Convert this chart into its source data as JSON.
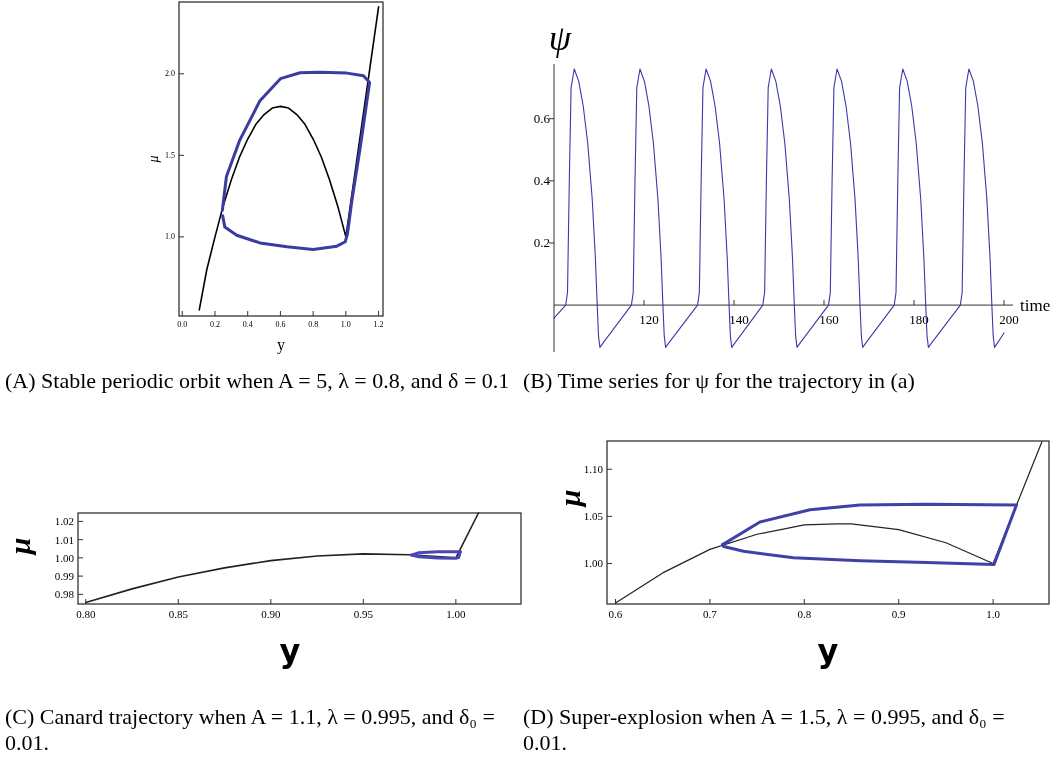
{
  "chart_data": [
    {
      "type": "line",
      "xlabel": "y",
      "ylabel": "μ",
      "xlim": [
        -0.02,
        1.227
      ],
      "ylim": [
        0.515,
        2.44
      ],
      "xticks": [
        {
          "value": 0,
          "label": "0.0"
        },
        0.2,
        0.4,
        0.6,
        0.8,
        {
          "value": 1,
          "label": "1.0"
        },
        1.2
      ],
      "yticks": [
        {
          "value": 1,
          "label": "1.0"
        },
        1.5,
        {
          "value": 2,
          "label": "2.0"
        }
      ],
      "series": [
        {
          "color": "#000000",
          "x": [
            0.104,
            0.15,
            0.2,
            0.25,
            0.3,
            0.35,
            0.4,
            0.45,
            0.5,
            0.55,
            0.6,
            0.65,
            0.7,
            0.75,
            0.8,
            0.85,
            0.9,
            0.95,
            1.0,
            1.2
          ],
          "values": [
            0.552,
            0.8,
            1.0,
            1.19,
            1.35,
            1.49,
            1.6,
            1.69,
            1.75,
            1.79,
            1.8,
            1.79,
            1.75,
            1.69,
            1.6,
            1.49,
            1.35,
            1.19,
            1.0,
            2.41
          ]
        },
        {
          "color": "#3b3ba0",
          "x": [
            0.245,
            0.27,
            0.35,
            0.475,
            0.6,
            0.72,
            0.84,
            1.006,
            1.108,
            1.145,
            1.088,
            1.037,
            1.01,
            0.996,
            0.945,
            0.8,
            0.64,
            0.475,
            0.333,
            0.26,
            0.247
          ],
          "values": [
            1.163,
            1.37,
            1.59,
            1.835,
            1.97,
            2.006,
            2.01,
            2.004,
            1.988,
            1.947,
            1.55,
            1.224,
            1.02,
            0.97,
            0.943,
            0.923,
            0.939,
            0.963,
            1.01,
            1.06,
            1.13
          ]
        }
      ],
      "annotations": [
        "(A) Stable periodic orbit when A = 5, λ = 0.8, and δ = 0.1"
      ]
    },
    {
      "type": "line",
      "xlabel": "time",
      "ylabel": "ψ",
      "xlim": [
        100,
        202
      ],
      "ylim": [
        -0.151,
        0.776
      ],
      "xticks": [
        120,
        140,
        160,
        180,
        200
      ],
      "yticks": [
        0.2,
        0.4,
        0.6
      ],
      "series": [
        {
          "color": "#3a3aa8",
          "x": [
            100,
            102.6,
            103,
            103.4,
            103.8,
            104.5,
            105.5,
            106.5,
            107.5,
            108.5,
            109.2,
            109.6,
            109.9,
            110.2,
            111,
            117.2,
            117.6,
            118,
            118.4,
            119.1,
            120.1,
            121.1,
            122.1,
            123.1,
            123.8,
            124.2,
            124.5,
            124.8,
            125.6,
            131.9,
            132.3,
            132.7,
            133.1,
            133.8,
            134.8,
            135.8,
            136.8,
            137.8,
            138.5,
            138.9,
            139.2,
            139.5,
            140.3,
            146.4,
            146.8,
            147.2,
            147.6,
            148.3,
            149.3,
            150.3,
            151.3,
            152.3,
            153,
            153.4,
            153.7,
            154,
            154.8,
            161,
            161.4,
            161.8,
            162.2,
            162.9,
            163.9,
            164.9,
            165.9,
            166.9,
            167.6,
            168,
            168.3,
            168.6,
            169.4,
            175.6,
            176,
            176.4,
            176.8,
            177.5,
            178.5,
            179.5,
            180.5,
            181.5,
            182.2,
            182.6,
            182.9,
            183.2,
            184,
            190.3,
            190.7,
            191.1,
            191.5,
            192.2,
            193.2,
            194.2,
            195.2,
            196.2,
            196.9,
            197.3,
            197.6,
            197.9,
            200
          ],
          "values": [
            -0.042,
            0,
            0.04,
            0.4,
            0.7,
            0.76,
            0.72,
            0.64,
            0.52,
            0.34,
            0.15,
            0,
            -0.1,
            -0.136,
            -0.12,
            0,
            0.04,
            0.4,
            0.7,
            0.76,
            0.72,
            0.64,
            0.52,
            0.34,
            0.15,
            0,
            -0.1,
            -0.136,
            -0.12,
            0,
            0.04,
            0.4,
            0.7,
            0.76,
            0.72,
            0.64,
            0.52,
            0.34,
            0.15,
            0,
            -0.1,
            -0.136,
            -0.12,
            0,
            0.04,
            0.4,
            0.7,
            0.76,
            0.72,
            0.64,
            0.52,
            0.34,
            0.15,
            0,
            -0.1,
            -0.136,
            -0.12,
            0,
            0.04,
            0.4,
            0.7,
            0.76,
            0.72,
            0.64,
            0.52,
            0.34,
            0.15,
            0,
            -0.1,
            -0.136,
            -0.12,
            0,
            0.04,
            0.4,
            0.7,
            0.76,
            0.72,
            0.64,
            0.52,
            0.34,
            0.15,
            0,
            -0.1,
            -0.136,
            -0.12,
            0,
            0.04,
            0.4,
            0.7,
            0.76,
            0.72,
            0.64,
            0.52,
            0.34,
            0.15,
            0,
            -0.1,
            -0.136,
            -0.09
          ]
        }
      ],
      "annotations": [
        "(B) Time series for ψ for the trajectory in (a)"
      ]
    },
    {
      "type": "line",
      "xlabel": "y",
      "ylabel": "μ",
      "xlim": [
        0.7958,
        1.0352
      ],
      "ylim": [
        0.9747,
        1.0246
      ],
      "xticks": [
        {
          "value": 0.8,
          "label": "0.80"
        },
        0.85,
        {
          "value": 0.9,
          "label": "0.90"
        },
        0.95,
        {
          "value": 1,
          "label": "1.00"
        }
      ],
      "yticks": [
        0.98,
        0.99,
        {
          "value": 1,
          "label": "1.00"
        },
        1.01,
        1.02
      ],
      "series": [
        {
          "color": "#222222",
          "x": [
            0.8,
            0.825,
            0.85,
            0.875,
            0.9,
            0.925,
            0.95,
            0.975,
            1.0,
            1.0122
          ],
          "values": [
            0.9755,
            0.983,
            0.9895,
            0.9945,
            0.9985,
            1.001,
            1.0022,
            1.0017,
            1.0,
            1.0246
          ]
        },
        {
          "color": "#4848b0",
          "x": [
            0.976,
            0.98,
            0.99,
            1.0,
            1.0024
          ],
          "values": [
            1.0015,
            1.0028,
            1.0033,
            1.0034,
            1.0034
          ]
        },
        {
          "color": "#4848b0",
          "x": [
            1.0024,
            1.0015,
            1.0,
            0.99,
            0.98,
            0.976
          ],
          "values": [
            1.0034,
            1.0002,
            0.9998,
            0.9999,
            1.0006,
            1.0015
          ]
        }
      ],
      "annotations": [
        "(C) Canard trajectory when A = 1.1, λ = 0.995, and δ₀ = 0.01."
      ]
    },
    {
      "type": "line",
      "xlabel": "y",
      "ylabel": "μ",
      "xlim": [
        0.591,
        1.0592
      ],
      "ylim": [
        0.957,
        1.13
      ],
      "xticks": [
        0.6,
        0.7,
        0.8,
        0.9,
        {
          "value": 1,
          "label": "1.0"
        }
      ],
      "yticks": [
        {
          "value": 1,
          "label": "1.00"
        },
        1.05,
        {
          "value": 1.1,
          "label": "1.10"
        }
      ],
      "series": [
        {
          "color": "#222222",
          "x": [
            0.6,
            0.65,
            0.7,
            0.75,
            0.8,
            0.834,
            0.85,
            0.9,
            0.95,
            1.0,
            1.0516
          ],
          "values": [
            0.958,
            0.99,
            1.015,
            1.031,
            1.041,
            1.042,
            1.042,
            1.036,
            1.022,
            1.0,
            1.129
          ]
        },
        {
          "color": "#4040a8",
          "x": [
            0.7135,
            0.753,
            0.806,
            0.859,
            0.93,
            1.0247
          ],
          "values": [
            1.02,
            1.044,
            1.057,
            1.062,
            1.063,
            1.062
          ]
        },
        {
          "color": "#4040a8",
          "x": [
            1.0247,
            1.001,
            0.9296,
            0.859,
            0.7885,
            0.7357,
            0.7146,
            0.7135
          ],
          "values": [
            1.062,
            0.999,
            1.001,
            1.003,
            1.006,
            1.013,
            1.018,
            1.02
          ]
        }
      ],
      "annotations": [
        "(D) Super-explosion when A = 1.5, λ = 0.995, and δ₀ = 0.01."
      ]
    }
  ]
}
